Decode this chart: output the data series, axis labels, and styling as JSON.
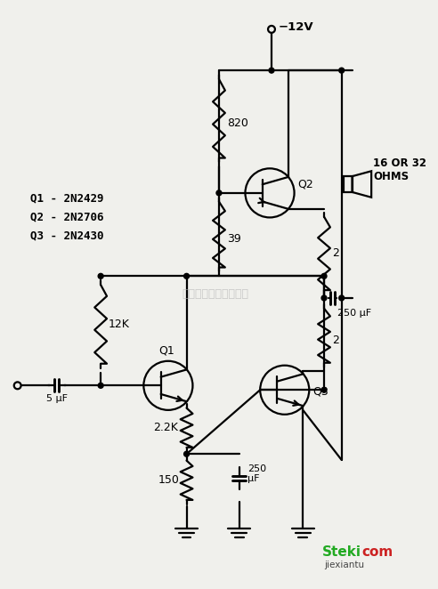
{
  "bg_color": "#f0f0ec",
  "line_color": "#000000",
  "figsize": [
    4.92,
    6.62
  ],
  "dpi": 100,
  "watermark": "杭州将睽科技有限公司",
  "labels": {
    "voltage": "−12V",
    "speaker": "16 OR 32\nOHMS",
    "r820": "820",
    "r39": "39",
    "r2_top": "2",
    "r2_bot": "2",
    "c250_top": "250 μF",
    "c250_bot": "250\nμF",
    "r12k": "12K",
    "r22k": "2.2K",
    "r150": "150",
    "c5": "5 μF",
    "q1": "Q1",
    "q2": "Q2",
    "q3": "Q3",
    "legend": "Q1 - 2N2429\nQ2 - 2N2706\nQ3 - 2N2430"
  },
  "logo1": "Steki",
  "logo2": "com",
  "logo_sub": "jiexiantu"
}
